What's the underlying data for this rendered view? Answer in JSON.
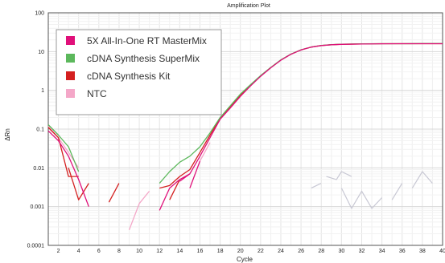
{
  "chart_data": {
    "type": "line",
    "title": "Amplification Plot",
    "xlabel": "Cycle",
    "ylabel": "ΔRn",
    "xlim": [
      1,
      40
    ],
    "ylim": [
      0.0001,
      100
    ],
    "yscale": "log",
    "grid": true,
    "legend_position": "top-left",
    "x_ticks": [
      2,
      4,
      6,
      8,
      10,
      12,
      14,
      16,
      18,
      20,
      22,
      24,
      26,
      28,
      30,
      32,
      34,
      36,
      38,
      40
    ],
    "y_ticks": [
      {
        "value": 0.0001,
        "label": "0.0001"
      },
      {
        "value": 0.001,
        "label": "0.001"
      },
      {
        "value": 0.01,
        "label": "0.01"
      },
      {
        "value": 0.1,
        "label": "0.1"
      },
      {
        "value": 1,
        "label": "1"
      },
      {
        "value": 10,
        "label": "10"
      },
      {
        "value": 100,
        "label": "100"
      }
    ],
    "series": [
      {
        "name": "5X All-In-One RT MasterMix",
        "color": "#e0107a",
        "segments": [
          [
            [
              1,
              0.09
            ],
            [
              2,
              0.05
            ],
            [
              3,
              0.02
            ],
            [
              4,
              0.005
            ],
            [
              5,
              0.001
            ]
          ],
          [
            [
              12,
              0.0008
            ],
            [
              13,
              0.003
            ],
            [
              14,
              0.005
            ],
            [
              15,
              0.007
            ],
            [
              16,
              0.02
            ],
            [
              17,
              0.06
            ],
            [
              18,
              0.18
            ],
            [
              19,
              0.35
            ],
            [
              20,
              0.7
            ],
            [
              21,
              1.3
            ],
            [
              22,
              2.3
            ],
            [
              23,
              3.8
            ],
            [
              24,
              6.0
            ],
            [
              25,
              8.5
            ],
            [
              26,
              11
            ],
            [
              27,
              13
            ],
            [
              28,
              14.3
            ],
            [
              29,
              15
            ],
            [
              30,
              15.4
            ],
            [
              32,
              15.7
            ],
            [
              34,
              15.9
            ],
            [
              36,
              16
            ],
            [
              38,
              16
            ],
            [
              40,
              16
            ]
          ],
          [
            [
              14,
              0.0045
            ],
            [
              15,
              0.007
            ]
          ],
          [
            [
              15,
              0.003
            ],
            [
              16,
              0.015
            ]
          ]
        ]
      },
      {
        "name": "cDNA Synthesis SuperMix",
        "color": "#5cb85c",
        "segments": [
          [
            [
              1,
              0.13
            ],
            [
              2,
              0.07
            ],
            [
              3,
              0.035
            ],
            [
              4,
              0.008
            ]
          ],
          [
            [
              12,
              0.004
            ],
            [
              13,
              0.008
            ],
            [
              14,
              0.014
            ],
            [
              15,
              0.02
            ],
            [
              16,
              0.035
            ],
            [
              17,
              0.08
            ],
            [
              18,
              0.2
            ],
            [
              19,
              0.4
            ],
            [
              20,
              0.8
            ],
            [
              21,
              1.4
            ],
            [
              22,
              2.4
            ],
            [
              23,
              3.9
            ],
            [
              24,
              6.1
            ],
            [
              25,
              8.6
            ],
            [
              26,
              11.1
            ],
            [
              27,
              13.1
            ],
            [
              28,
              14.4
            ],
            [
              29,
              15.1
            ],
            [
              30,
              15.5
            ],
            [
              32,
              15.8
            ],
            [
              34,
              16
            ],
            [
              36,
              16
            ],
            [
              38,
              16.1
            ],
            [
              40,
              16.1
            ]
          ]
        ]
      },
      {
        "name": "cDNA Synthesis Kit",
        "color": "#d42020",
        "segments": [
          [
            [
              1,
              0.11
            ],
            [
              2,
              0.06
            ],
            [
              3,
              0.006
            ],
            [
              4,
              0.006
            ]
          ],
          [
            [
              3,
              0.01
            ],
            [
              4,
              0.0015
            ],
            [
              5,
              0.004
            ]
          ],
          [
            [
              7,
              0.0013
            ],
            [
              8,
              0.004
            ]
          ],
          [
            [
              12,
              0.003
            ],
            [
              13,
              0.0035
            ],
            [
              14,
              0.006
            ],
            [
              15,
              0.009
            ],
            [
              16,
              0.025
            ],
            [
              17,
              0.07
            ],
            [
              18,
              0.19
            ],
            [
              19,
              0.38
            ],
            [
              20,
              0.75
            ],
            [
              21,
              1.35
            ],
            [
              22,
              2.35
            ],
            [
              23,
              3.85
            ],
            [
              24,
              6.05
            ],
            [
              25,
              8.55
            ],
            [
              26,
              11.05
            ],
            [
              27,
              13.05
            ],
            [
              28,
              14.35
            ],
            [
              29,
              15.05
            ],
            [
              30,
              15.45
            ],
            [
              32,
              15.75
            ],
            [
              34,
              15.95
            ],
            [
              36,
              16
            ],
            [
              38,
              16
            ],
            [
              40,
              16
            ]
          ],
          [
            [
              13,
              0.0015
            ],
            [
              14,
              0.005
            ]
          ]
        ]
      },
      {
        "name": "NTC",
        "color": "#f4a7c8",
        "segments": [
          [
            [
              1,
              0.12
            ],
            [
              2,
              0.06
            ],
            [
              3,
              0.025
            ],
            [
              4,
              0.01
            ]
          ],
          [
            [
              9,
              0.00025
            ],
            [
              10,
              0.0012
            ],
            [
              11,
              0.0025
            ]
          ],
          [
            [
              16,
              0.015
            ],
            [
              17,
              0.045
            ]
          ]
        ]
      }
    ],
    "extra_segments": [
      {
        "color": "#c8c8d4",
        "points": [
          [
            27,
            0.003
          ],
          [
            28,
            0.004
          ]
        ]
      },
      {
        "color": "#c8c8d4",
        "points": [
          [
            28.5,
            0.006
          ],
          [
            29.5,
            0.005
          ],
          [
            30,
            0.008
          ],
          [
            31,
            0.006
          ]
        ]
      },
      {
        "color": "#c8c8d4",
        "points": [
          [
            30,
            0.003
          ],
          [
            31,
            0.0009
          ],
          [
            32,
            0.0025
          ],
          [
            33,
            0.0009
          ],
          [
            34,
            0.0017
          ]
        ]
      },
      {
        "color": "#c8c8d4",
        "points": [
          [
            35,
            0.0015
          ],
          [
            36,
            0.004
          ]
        ]
      },
      {
        "color": "#c8c8d4",
        "points": [
          [
            37,
            0.003
          ],
          [
            38,
            0.008
          ],
          [
            39,
            0.004
          ]
        ]
      }
    ]
  }
}
